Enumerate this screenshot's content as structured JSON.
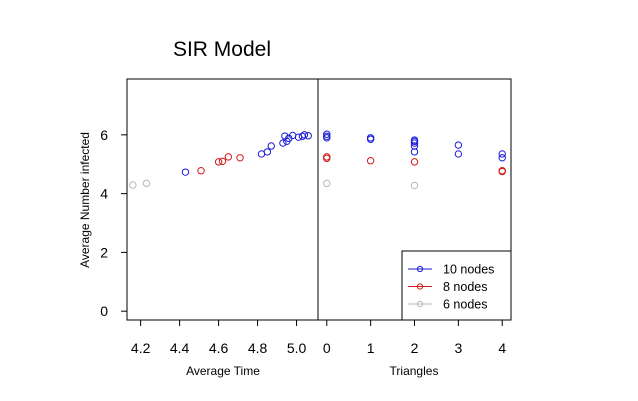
{
  "chart_data": {
    "type": "scatter",
    "title": "SIR Model",
    "ylabel": "Average Number infected",
    "ylim": [
      -0.3,
      7.9
    ],
    "yticks": [
      0,
      2,
      4,
      6
    ],
    "panels": [
      {
        "xlabel": "Average Time",
        "xlim": [
          4.13,
          5.11
        ],
        "xticks": [
          4.2,
          4.4,
          4.6,
          4.8,
          5.0
        ],
        "series": [
          {
            "name": "10 nodes",
            "points": [
              [
                4.43,
                4.73
              ],
              [
                4.85,
                5.42
              ],
              [
                4.82,
                5.35
              ],
              [
                4.87,
                5.62
              ],
              [
                4.93,
                5.72
              ],
              [
                4.95,
                5.78
              ],
              [
                4.96,
                5.88
              ],
              [
                4.94,
                5.96
              ],
              [
                4.98,
                5.98
              ],
              [
                5.01,
                5.92
              ],
              [
                5.03,
                5.95
              ],
              [
                5.06,
                5.97
              ],
              [
                5.04,
                6.0
              ]
            ]
          },
          {
            "name": "8 nodes",
            "points": [
              [
                4.51,
                4.78
              ],
              [
                4.6,
                5.08
              ],
              [
                4.62,
                5.1
              ],
              [
                4.65,
                5.25
              ],
              [
                4.71,
                5.22
              ]
            ]
          },
          {
            "name": "6 nodes",
            "points": [
              [
                4.16,
                4.29
              ],
              [
                4.23,
                4.35
              ]
            ]
          }
        ]
      },
      {
        "xlabel": "Triangles",
        "xlim": [
          -0.2,
          4.2
        ],
        "xticks": [
          0,
          1,
          2,
          3,
          4
        ],
        "series": [
          {
            "name": "10 nodes",
            "points": [
              [
                0,
                5.9
              ],
              [
                0,
                5.95
              ],
              [
                0,
                6.02
              ],
              [
                1,
                5.85
              ],
              [
                1,
                5.9
              ],
              [
                2,
                5.42
              ],
              [
                2,
                5.62
              ],
              [
                2,
                5.72
              ],
              [
                2,
                5.78
              ],
              [
                2,
                5.82
              ],
              [
                3,
                5.35
              ],
              [
                3,
                5.65
              ],
              [
                4,
                5.22
              ],
              [
                4,
                5.35
              ]
            ]
          },
          {
            "name": "8 nodes",
            "points": [
              [
                0,
                5.2
              ],
              [
                0,
                5.25
              ],
              [
                1,
                5.12
              ],
              [
                2,
                5.08
              ],
              [
                4,
                4.75
              ],
              [
                4,
                4.78
              ]
            ]
          },
          {
            "name": "6 nodes",
            "points": [
              [
                0,
                4.35
              ],
              [
                2,
                4.28
              ]
            ]
          }
        ]
      }
    ],
    "legend": {
      "placement": "bottom-right",
      "entries": [
        "10 nodes",
        "8 nodes",
        "6 nodes"
      ]
    },
    "colors": {
      "10 nodes": "#1a1ad6",
      "8 nodes": "#d21c1c",
      "6 nodes": "#b8b8b8"
    }
  }
}
